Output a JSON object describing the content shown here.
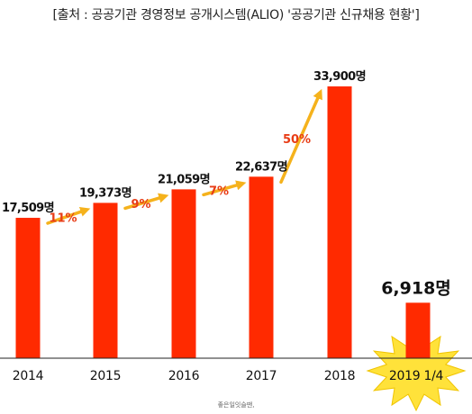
{
  "source_text": "[출처 : 공공기관 경영정보 공개시스템(ALIO) '공공기관 신규채용 현황']",
  "watermark": "좋은일잇슬땐,",
  "colors": {
    "bar": "#ff2a00",
    "arrow": "#f5b21c",
    "growth_text": "#e83c16",
    "starburst": "#ffe23a"
  },
  "chart_data": {
    "type": "bar",
    "categories": [
      "2014",
      "2015",
      "2016",
      "2017",
      "2018",
      "2019 1/4"
    ],
    "values": [
      17509,
      19373,
      21059,
      22637,
      33900,
      6918
    ],
    "value_labels": [
      "17,509명",
      "19,373명",
      "21,059명",
      "22,637명",
      "33,900명",
      "6,918명"
    ],
    "growth_labels": [
      "11%",
      "9%",
      "7%",
      "50%"
    ],
    "title": "",
    "xlabel": "",
    "ylabel": "",
    "ylim": [
      0,
      36000
    ],
    "grid": false,
    "legend": "none",
    "highlight_category": "2019 1/4"
  }
}
